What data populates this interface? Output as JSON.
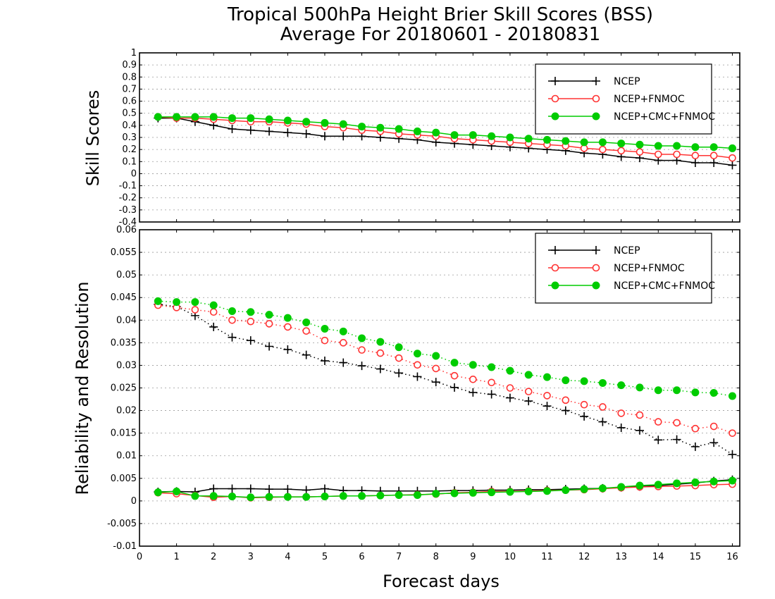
{
  "colors": {
    "NCEP": "#000000",
    "NCEP+FNMOC": "#ff3333",
    "NCEP+CMC+FNMOC": "#00cc00",
    "grid": "#9a9a9a"
  },
  "chart_data": [
    {
      "type": "line",
      "title": "Tropical 500hPa Height Brier Skill Scores (BSS)",
      "subtitle": "Average For 20180601 - 20180831",
      "ylabel": "Skill Scores",
      "xlabel": "Forecast days",
      "xlim": [
        0,
        16.2
      ],
      "ylim": [
        -0.4,
        1
      ],
      "yticks": [
        -0.4,
        -0.3,
        -0.2,
        -0.1,
        0,
        0.1,
        0.2,
        0.3,
        0.4,
        0.5,
        0.6,
        0.7,
        0.8,
        0.9,
        1
      ],
      "ytick_labels": [
        "-0.4",
        "-0.3",
        "-0.2",
        "-0.1",
        "0",
        "0.1",
        "0.2",
        "0.3",
        "0.4",
        "0.5",
        "0.6",
        "0.7",
        "0.8",
        "0.9",
        "1"
      ],
      "grid": true,
      "legend": {
        "placement": "top-right",
        "entries": [
          "NCEP",
          "NCEP+FNMOC",
          "NCEP+CMC+FNMOC"
        ]
      },
      "x": [
        0.5,
        1,
        1.5,
        2,
        2.5,
        3,
        3.5,
        4,
        4.5,
        5,
        5.5,
        6,
        6.5,
        7,
        7.5,
        8,
        8.5,
        9,
        9.5,
        10,
        10.5,
        11,
        11.5,
        12,
        12.5,
        13,
        13.5,
        14,
        14.5,
        15,
        15.5,
        16
      ],
      "series": [
        {
          "name": "NCEP",
          "marker": "plus",
          "line": "solid",
          "values": [
            0.46,
            0.46,
            0.43,
            0.4,
            0.37,
            0.36,
            0.35,
            0.34,
            0.33,
            0.31,
            0.31,
            0.31,
            0.3,
            0.29,
            0.28,
            0.26,
            0.25,
            0.24,
            0.23,
            0.22,
            0.21,
            0.2,
            0.19,
            0.17,
            0.16,
            0.14,
            0.13,
            0.11,
            0.11,
            0.09,
            0.09,
            0.07
          ]
        },
        {
          "name": "NCEP+FNMOC",
          "marker": "open-circle",
          "line": "solid",
          "values": [
            0.47,
            0.46,
            0.46,
            0.45,
            0.44,
            0.43,
            0.43,
            0.42,
            0.41,
            0.39,
            0.38,
            0.36,
            0.35,
            0.33,
            0.32,
            0.31,
            0.29,
            0.28,
            0.27,
            0.26,
            0.25,
            0.24,
            0.23,
            0.21,
            0.2,
            0.19,
            0.18,
            0.16,
            0.16,
            0.15,
            0.15,
            0.13
          ]
        },
        {
          "name": "NCEP+CMC+FNMOC",
          "marker": "filled-circle",
          "line": "solid",
          "values": [
            0.47,
            0.47,
            0.47,
            0.47,
            0.46,
            0.46,
            0.45,
            0.44,
            0.43,
            0.42,
            0.41,
            0.39,
            0.38,
            0.37,
            0.35,
            0.34,
            0.32,
            0.32,
            0.31,
            0.3,
            0.29,
            0.28,
            0.27,
            0.26,
            0.26,
            0.25,
            0.24,
            0.23,
            0.23,
            0.22,
            0.22,
            0.21
          ]
        }
      ]
    },
    {
      "type": "line",
      "ylabel": "Reliability and Resolution",
      "xlim": [
        0,
        16.2
      ],
      "ylim": [
        -0.01,
        0.06
      ],
      "yticks": [
        -0.01,
        -0.005,
        0,
        0.005,
        0.01,
        0.015,
        0.02,
        0.025,
        0.03,
        0.035,
        0.04,
        0.045,
        0.05,
        0.055,
        0.06
      ],
      "ytick_labels": [
        "-0.01",
        "-0.005",
        "0",
        "0.005",
        "0.01",
        "0.015",
        "0.02",
        "0.025",
        "0.03",
        "0.035",
        "0.04",
        "0.045",
        "0.05",
        "0.055",
        "0.06"
      ],
      "xticks": [
        0,
        1,
        2,
        3,
        4,
        5,
        6,
        7,
        8,
        9,
        10,
        11,
        12,
        13,
        14,
        15,
        16
      ],
      "xtick_labels": [
        "0",
        "1",
        "2",
        "3",
        "4",
        "5",
        "6",
        "7",
        "8",
        "9",
        "10",
        "11",
        "12",
        "13",
        "14",
        "15",
        "16"
      ],
      "grid": true,
      "legend": {
        "placement": "top-right",
        "entries": [
          "NCEP",
          "NCEP+FNMOC",
          "NCEP+CMC+FNMOC"
        ]
      },
      "x": [
        0.5,
        1,
        1.5,
        2,
        2.5,
        3,
        3.5,
        4,
        4.5,
        5,
        5.5,
        6,
        6.5,
        7,
        7.5,
        8,
        8.5,
        9,
        9.5,
        10,
        10.5,
        11,
        11.5,
        12,
        12.5,
        13,
        13.5,
        14,
        14.5,
        15,
        15.5,
        16
      ],
      "series": [
        {
          "name": "NCEP",
          "group": "resolution",
          "marker": "plus",
          "line": "dotted",
          "values": [
            0.0435,
            0.043,
            0.041,
            0.0385,
            0.0362,
            0.0355,
            0.0342,
            0.0335,
            0.0323,
            0.031,
            0.0306,
            0.0299,
            0.0292,
            0.0283,
            0.0275,
            0.0263,
            0.0251,
            0.024,
            0.0236,
            0.0228,
            0.0221,
            0.021,
            0.02,
            0.0187,
            0.0175,
            0.0162,
            0.0156,
            0.0135,
            0.0136,
            0.012,
            0.0129,
            0.0103
          ]
        },
        {
          "name": "NCEP+FNMOC",
          "group": "resolution",
          "marker": "open-circle",
          "line": "dotted",
          "values": [
            0.0433,
            0.0428,
            0.0423,
            0.0418,
            0.04,
            0.0397,
            0.0392,
            0.0385,
            0.0376,
            0.0355,
            0.035,
            0.0334,
            0.0327,
            0.0316,
            0.0301,
            0.0293,
            0.0277,
            0.0269,
            0.0262,
            0.025,
            0.0242,
            0.0233,
            0.0223,
            0.0213,
            0.0208,
            0.0194,
            0.019,
            0.0175,
            0.0173,
            0.016,
            0.0165,
            0.015
          ]
        },
        {
          "name": "NCEP+CMC+FNMOC",
          "group": "resolution",
          "marker": "filled-circle",
          "line": "dotted",
          "values": [
            0.0442,
            0.044,
            0.044,
            0.0433,
            0.042,
            0.0418,
            0.0412,
            0.0405,
            0.0395,
            0.0381,
            0.0375,
            0.036,
            0.0352,
            0.034,
            0.0326,
            0.0321,
            0.0306,
            0.0301,
            0.0296,
            0.0288,
            0.0279,
            0.0274,
            0.0267,
            0.0265,
            0.0261,
            0.0256,
            0.0251,
            0.0245,
            0.0245,
            0.024,
            0.0239,
            0.0232
          ]
        },
        {
          "name": "NCEP",
          "group": "reliability",
          "marker": "plus",
          "line": "solid",
          "values": [
            0.002,
            0.0021,
            0.002,
            0.0027,
            0.0027,
            0.0027,
            0.0026,
            0.0026,
            0.0024,
            0.0027,
            0.0023,
            0.0023,
            0.0022,
            0.0022,
            0.0022,
            0.0022,
            0.0023,
            0.0023,
            0.0024,
            0.0024,
            0.0025,
            0.0025,
            0.0026,
            0.0027,
            0.0028,
            0.003,
            0.0032,
            0.0034,
            0.0037,
            0.004,
            0.0044,
            0.0047
          ]
        },
        {
          "name": "NCEP+FNMOC",
          "group": "reliability",
          "marker": "open-circle",
          "line": "solid",
          "values": [
            0.0018,
            0.0016,
            0.0012,
            0.0008,
            0.001,
            0.0007,
            0.0008,
            0.0009,
            0.0009,
            0.001,
            0.0011,
            0.0011,
            0.0012,
            0.0013,
            0.0014,
            0.0015,
            0.0018,
            0.0019,
            0.0021,
            0.0021,
            0.0022,
            0.0023,
            0.0024,
            0.0025,
            0.0027,
            0.0029,
            0.0031,
            0.0032,
            0.0033,
            0.0034,
            0.0036,
            0.0037
          ]
        },
        {
          "name": "NCEP+CMC+FNMOC",
          "group": "reliability",
          "marker": "filled-circle",
          "line": "solid",
          "values": [
            0.0019,
            0.0021,
            0.0011,
            0.0011,
            0.001,
            0.0008,
            0.0009,
            0.0009,
            0.0009,
            0.001,
            0.0011,
            0.0011,
            0.0012,
            0.0013,
            0.0013,
            0.0016,
            0.0017,
            0.0018,
            0.0019,
            0.002,
            0.0021,
            0.0022,
            0.0024,
            0.0026,
            0.0028,
            0.0031,
            0.0034,
            0.0036,
            0.0039,
            0.0041,
            0.0043,
            0.0045
          ]
        }
      ]
    }
  ]
}
